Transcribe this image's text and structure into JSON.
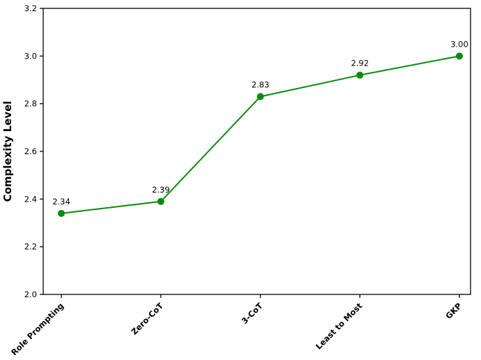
{
  "chart_data": {
    "type": "line",
    "title": "",
    "ylabel": "Complexity Level",
    "xlabel": "",
    "categories": [
      "Role Prompting",
      "Zero-CoT",
      "3-CoT",
      "Least to Most",
      "GKP"
    ],
    "series": [
      {
        "name": "Complexity Level",
        "values": [
          2.34,
          2.39,
          2.83,
          2.92,
          3.0
        ],
        "point_labels": [
          "2.34",
          "2.39",
          "2.83",
          "2.92",
          "3.00"
        ],
        "color": "#0a8a0a"
      }
    ],
    "ylim": [
      2.0,
      3.2
    ],
    "ytick_step": 0.2,
    "ytick_labels": [
      "2.0",
      "2.2",
      "2.4",
      "2.6",
      "2.8",
      "3.0",
      "3.2"
    ],
    "grid": "off",
    "legend": "none",
    "axis_color": "#000000",
    "text_color": "#000000",
    "xtick_rotation_deg": 45
  }
}
